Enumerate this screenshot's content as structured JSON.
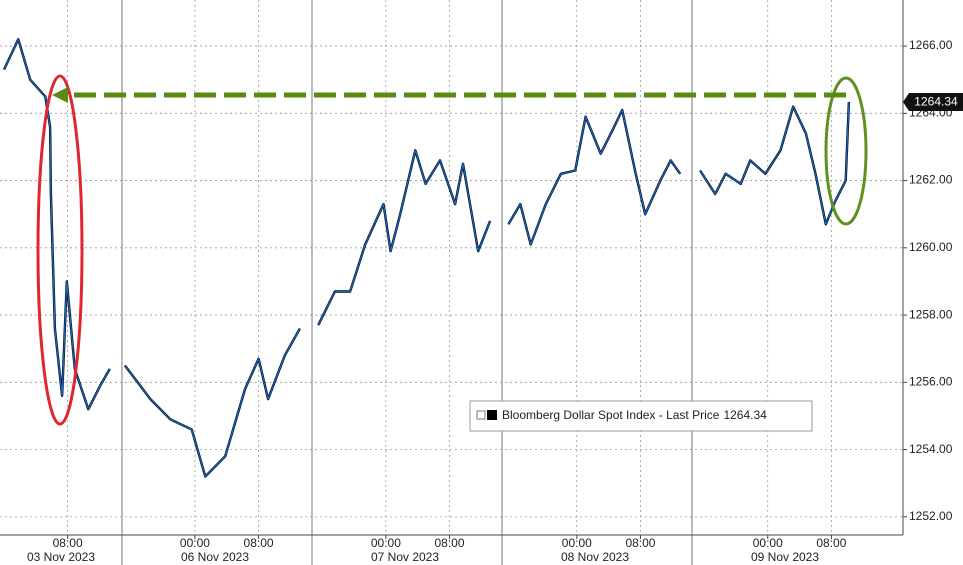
{
  "chart_data": {
    "type": "line",
    "series": [
      {
        "name": "Bloomberg Dollar Spot Index - Last Price",
        "color": "#1763c4",
        "x": [
          0,
          1.8,
          3.3,
          5.2,
          5.8,
          5.9,
          6.4,
          7.3,
          7.9,
          8.9,
          10.6,
          12.1,
          13.3,
          14.5,
          15.2,
          18.4,
          20.9,
          23.6,
          25.3,
          27.8,
          30.3,
          32,
          33.2,
          35.3,
          37.2,
          38.5,
          39.5,
          41.6,
          43.5,
          45.4,
          47.7,
          48.6,
          49.8,
          51.7,
          53,
          54.8,
          56.7,
          57.7,
          59.6,
          61.1,
          62.5,
          63.4,
          64.9,
          66.2,
          68.1,
          70,
          71.8,
          73.1,
          75,
          76.5,
          77.7,
          79.4,
          80.6,
          82.5,
          83.8,
          85,
          86.5,
          87.5,
          89.4,
          90.7,
          92.6,
          93.8,
          95.7,
          97.6,
          99.2,
          100.8,
          102,
          103.3,
          104.5,
          105.8,
          106.2
        ],
        "values": [
          1265.3,
          1266.2,
          1265.0,
          1264.5,
          1263.6,
          1261.6,
          1257.6,
          1255.6,
          1259.0,
          1256.4,
          1255.2,
          1255.9,
          1256.4,
          null,
          1256.5,
          1255.5,
          1254.9,
          1254.6,
          1253.2,
          1253.8,
          1255.8,
          1256.7,
          1255.5,
          1256.8,
          1257.6,
          null,
          1257.7,
          1258.7,
          1258.7,
          1260.1,
          1261.3,
          1259.9,
          1261.0,
          1262.9,
          1261.9,
          1262.6,
          1261.3,
          1262.5,
          1259.9,
          1260.8,
          null,
          1260.7,
          1261.3,
          1260.1,
          1261.3,
          1262.2,
          1262.3,
          1263.9,
          1262.8,
          1263.5,
          1264.1,
          1262.2,
          1261.0,
          1262.0,
          1262.6,
          1262.2,
          null,
          1262.3,
          1261.6,
          1262.2,
          1261.9,
          1262.6,
          1262.2,
          1262.9,
          1264.2,
          1263.4,
          1262.2,
          1260.7,
          1261.4,
          1262.0,
          1264.34
        ]
      }
    ],
    "xlim": [
      -0.5,
      113
    ],
    "xticks": [
      {
        "value": 8,
        "label": "08:00"
      },
      {
        "value": 24,
        "label": "00:00"
      },
      {
        "value": 32,
        "label": "08:00"
      },
      {
        "value": 48,
        "label": "00:00"
      },
      {
        "value": 56,
        "label": "08:00"
      },
      {
        "value": 72,
        "label": "00:00"
      },
      {
        "value": 80,
        "label": "08:00"
      },
      {
        "value": 96,
        "label": "00:00"
      },
      {
        "value": 104,
        "label": "08:00"
      }
    ],
    "day_labels": [
      "03 Nov 2023",
      "06 Nov 2023",
      "07 Nov 2023",
      "08 Nov 2023",
      "09 Nov 2023"
    ],
    "ylim": [
      1251.46,
      1267.37
    ],
    "yticks": [
      {
        "value": 1252,
        "label": "1252.00"
      },
      {
        "value": 1254,
        "label": "1254.00"
      },
      {
        "value": 1256,
        "label": "1256.00"
      },
      {
        "value": 1258,
        "label": "1258.00"
      },
      {
        "value": 1260,
        "label": "1260.00"
      },
      {
        "value": 1262,
        "label": "1262.00"
      },
      {
        "value": 1264,
        "label": "1264.00"
      },
      {
        "value": 1266,
        "label": "1266.00"
      }
    ],
    "grid": true
  }
}
